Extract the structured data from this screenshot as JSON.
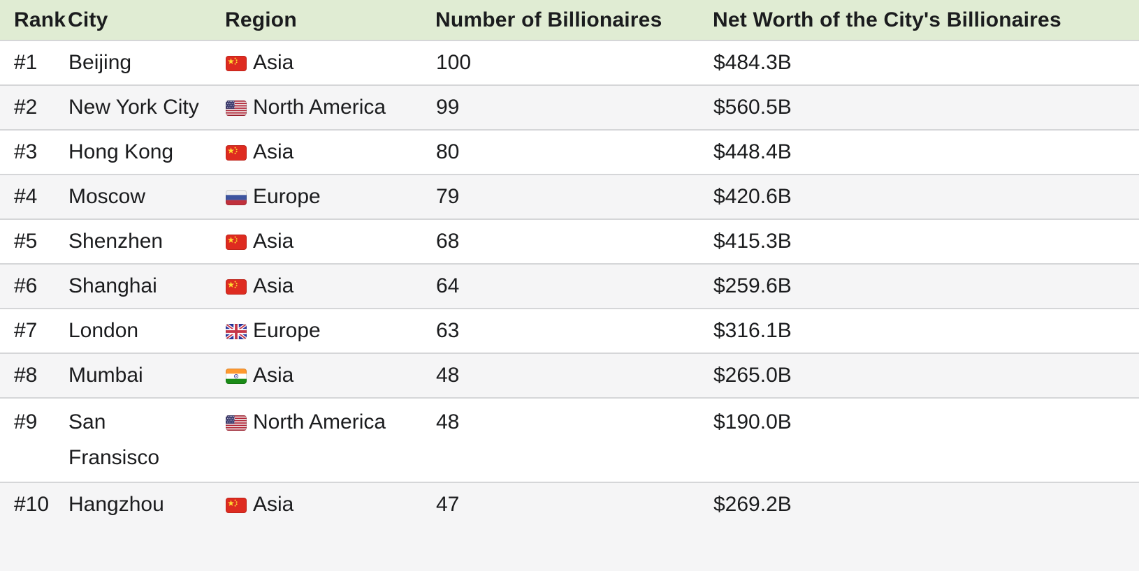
{
  "chart_data": {
    "type": "table",
    "columns": [
      {
        "label": "Rank"
      },
      {
        "label": "City"
      },
      {
        "label": "Region"
      },
      {
        "label": "Number of Billionaires"
      },
      {
        "label": "Net Worth of the City's Billionaires"
      }
    ],
    "rows": [
      {
        "rank": "#1",
        "city": "Beijing",
        "flag": "cn",
        "region": "Asia",
        "billionaires": "100",
        "net_worth": "$484.3B"
      },
      {
        "rank": "#2",
        "city": "New York City",
        "flag": "us",
        "region": "North America",
        "billionaires": "99",
        "net_worth": "$560.5B"
      },
      {
        "rank": "#3",
        "city": "Hong Kong",
        "flag": "cn",
        "region": "Asia",
        "billionaires": "80",
        "net_worth": "$448.4B"
      },
      {
        "rank": "#4",
        "city": "Moscow",
        "flag": "ru",
        "region": "Europe",
        "billionaires": "79",
        "net_worth": "$420.6B"
      },
      {
        "rank": "#5",
        "city": "Shenzhen",
        "flag": "cn",
        "region": "Asia",
        "billionaires": "68",
        "net_worth": "$415.3B"
      },
      {
        "rank": "#6",
        "city": "Shanghai",
        "flag": "cn",
        "region": "Asia",
        "billionaires": "64",
        "net_worth": "$259.6B"
      },
      {
        "rank": "#7",
        "city": "London",
        "flag": "gb",
        "region": "Europe",
        "billionaires": "63",
        "net_worth": "$316.1B"
      },
      {
        "rank": "#8",
        "city": "Mumbai",
        "flag": "in",
        "region": "Asia",
        "billionaires": "48",
        "net_worth": "$265.0B"
      },
      {
        "rank": "#9",
        "city": "San\nFransisco",
        "flag": "us",
        "region": "North America",
        "billionaires": "48",
        "net_worth": "$190.0B"
      },
      {
        "rank": "#10",
        "city": "Hangzhou",
        "flag": "cn",
        "region": "Asia",
        "billionaires": "47",
        "net_worth": "$269.2B"
      }
    ]
  },
  "flags": {
    "cn": "China",
    "us": "United States",
    "ru": "Russia",
    "gb": "United Kingdom",
    "in": "India"
  },
  "colors": {
    "header_bg": "#e0ecd3",
    "row_alt_bg": "#f5f5f6",
    "border": "#d5d6d8",
    "text": "#1b1c1e"
  }
}
